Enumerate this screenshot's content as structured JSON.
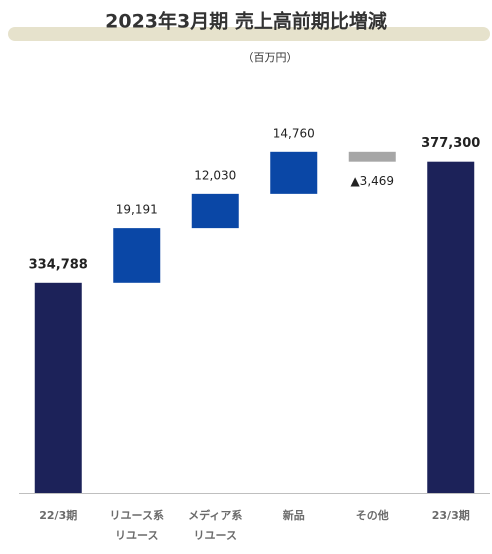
{
  "chart_data": {
    "type": "waterfall",
    "title": "2023年3月期 売上高前期比増減",
    "unit": "（百万円）",
    "categories": [
      "22/3期",
      "リユース系\nリユース",
      "メディア系\nリユース",
      "新品",
      "その他",
      "23/3期"
    ],
    "measure": [
      "absolute",
      "relative",
      "relative",
      "relative",
      "relative",
      "absolute"
    ],
    "values": [
      334788,
      19191,
      12030,
      14760,
      -3469,
      377300
    ],
    "value_labels": [
      "334,788",
      "19,191",
      "12,030",
      "14,760",
      "▲3,469",
      "377,300"
    ],
    "total_color": "#1c2259",
    "increase_color": "#0a47a6",
    "decrease_color": "#a6a6a6",
    "ylim": [
      261000,
      380000
    ]
  }
}
